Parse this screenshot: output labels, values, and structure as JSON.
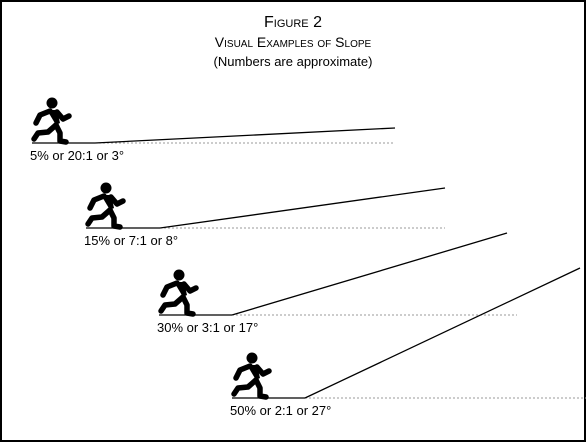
{
  "title": "Figure 2",
  "subtitle": "Visual Examples of Slope",
  "note": "(Numbers are approximate)",
  "examples": [
    {
      "label": "5% or 20:1 or 3°"
    },
    {
      "label": "15% or 7:1 or 8°"
    },
    {
      "label": "30% or 3:1 or 17°"
    },
    {
      "label": "50% or 2:1 or 27°"
    }
  ]
}
